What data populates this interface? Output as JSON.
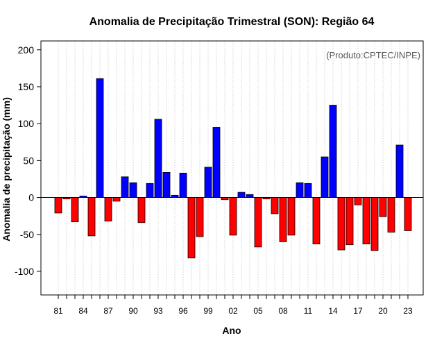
{
  "colors": {
    "positive": "#0000ff",
    "negative": "#ff0000",
    "credit": "#555555"
  },
  "chart_data": {
    "type": "bar",
    "title": "Anomalia de Precipitação Trimestral (SON): Região 64",
    "credit": "(Produto:CPTEC/INPE)",
    "xlabel": "Ano",
    "ylabel": "Anomalia de precipitação (mm)",
    "ylim": [
      -132,
      212
    ],
    "yticks": [
      -100,
      -50,
      0,
      50,
      100,
      150,
      200
    ],
    "years": [
      1981,
      1982,
      1983,
      1984,
      1985,
      1986,
      1987,
      1988,
      1989,
      1990,
      1991,
      1992,
      1993,
      1994,
      1995,
      1996,
      1997,
      1998,
      1999,
      2000,
      2001,
      2002,
      2003,
      2004,
      2005,
      2006,
      2007,
      2008,
      2009,
      2010,
      2011,
      2012,
      2013,
      2014,
      2015,
      2016,
      2017,
      2018,
      2019,
      2020,
      2021,
      2022,
      2023
    ],
    "xtick_labels": [
      "81",
      "84",
      "87",
      "90",
      "93",
      "96",
      "99",
      "02",
      "05",
      "08",
      "11",
      "14",
      "17",
      "20",
      "23"
    ],
    "values": [
      -21,
      -2,
      -33,
      2,
      -52,
      161,
      -32,
      -5,
      28,
      20,
      -34,
      19,
      106,
      34,
      3,
      33,
      -82,
      -53,
      41,
      95,
      -3,
      -51,
      7,
      4,
      -67,
      -2,
      -22,
      -60,
      -51,
      20,
      19,
      -63,
      55,
      125,
      -71,
      -64,
      -10,
      -63,
      -72,
      -26,
      -47,
      71,
      -45
    ]
  }
}
